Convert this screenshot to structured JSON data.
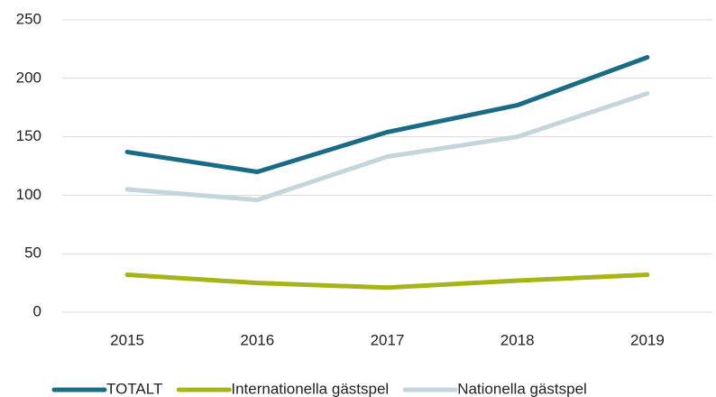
{
  "chart_data": {
    "type": "line",
    "categories": [
      "2015",
      "2016",
      "2017",
      "2018",
      "2019"
    ],
    "series": [
      {
        "name": "TOTALT",
        "color": "#1a6b85",
        "values": [
          137,
          120,
          154,
          177,
          218
        ]
      },
      {
        "name": "Internationella gästspel",
        "color": "#a6b418",
        "values": [
          32,
          25,
          21,
          27,
          32
        ]
      },
      {
        "name": "Nationella gästspel",
        "color": "#c5d5dc",
        "values": [
          105,
          96,
          133,
          150,
          187
        ]
      }
    ],
    "ylim": [
      0,
      250
    ],
    "yticks": [
      0,
      50,
      100,
      150,
      200,
      250
    ],
    "grid": true,
    "legend": "bottom"
  }
}
